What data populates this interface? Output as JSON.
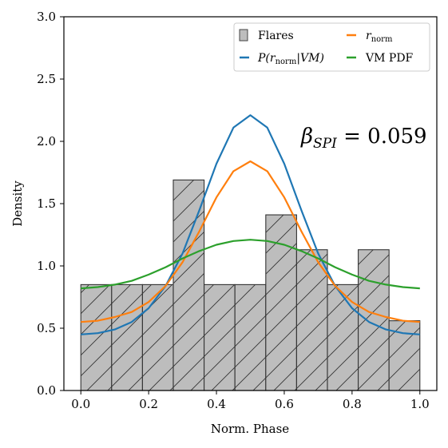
{
  "chart_data": {
    "type": "bar",
    "xlabel": "Norm. Phase",
    "ylabel": "Density",
    "xlim": [
      -0.05,
      1.05
    ],
    "ylim": [
      0.0,
      3.0
    ],
    "xticks": [
      "0.0",
      "0.2",
      "0.4",
      "0.6",
      "0.8",
      "1.0"
    ],
    "yticks": [
      "0.0",
      "0.5",
      "1.0",
      "1.5",
      "2.0",
      "2.5",
      "3.0"
    ],
    "histogram": {
      "name": "Flares",
      "color": "#bdbdbd",
      "bin_edges": [
        0.0,
        0.0909,
        0.1818,
        0.2727,
        0.3636,
        0.4545,
        0.5455,
        0.6364,
        0.7273,
        0.8182,
        0.9091,
        1.0
      ],
      "values": [
        0.85,
        0.85,
        0.85,
        1.69,
        0.85,
        0.85,
        1.41,
        1.13,
        0.85,
        1.13,
        0.56
      ]
    },
    "series": [
      {
        "name": "P(r_norm|VM)",
        "label_parts": [
          "P(r",
          "norm",
          "|VM)"
        ],
        "color": "#1f77b4",
        "x": [
          0.0,
          0.05,
          0.1,
          0.15,
          0.2,
          0.25,
          0.3,
          0.35,
          0.4,
          0.45,
          0.5,
          0.55,
          0.6,
          0.65,
          0.7,
          0.75,
          0.8,
          0.85,
          0.9,
          0.95,
          1.0
        ],
        "y": [
          0.45,
          0.46,
          0.49,
          0.55,
          0.66,
          0.84,
          1.1,
          1.45,
          1.82,
          2.11,
          2.21,
          2.11,
          1.82,
          1.45,
          1.1,
          0.84,
          0.66,
          0.55,
          0.49,
          0.46,
          0.45
        ]
      },
      {
        "name": "r_norm",
        "label_parts": [
          "r",
          "norm"
        ],
        "color": "#ff7f0e",
        "x": [
          0.0,
          0.05,
          0.1,
          0.15,
          0.2,
          0.25,
          0.3,
          0.35,
          0.4,
          0.45,
          0.5,
          0.55,
          0.6,
          0.65,
          0.7,
          0.75,
          0.8,
          0.85,
          0.9,
          0.95,
          1.0
        ],
        "y": [
          0.55,
          0.56,
          0.59,
          0.63,
          0.71,
          0.84,
          1.03,
          1.28,
          1.55,
          1.76,
          1.84,
          1.76,
          1.55,
          1.28,
          1.03,
          0.84,
          0.71,
          0.63,
          0.59,
          0.56,
          0.55
        ]
      },
      {
        "name": "VM PDF",
        "color": "#2ca02c",
        "x": [
          0.0,
          0.05,
          0.1,
          0.15,
          0.2,
          0.25,
          0.3,
          0.35,
          0.4,
          0.45,
          0.5,
          0.55,
          0.6,
          0.65,
          0.7,
          0.75,
          0.8,
          0.85,
          0.9,
          0.95,
          1.0
        ],
        "y": [
          0.82,
          0.83,
          0.85,
          0.88,
          0.93,
          0.99,
          1.06,
          1.12,
          1.17,
          1.2,
          1.21,
          1.2,
          1.17,
          1.12,
          1.06,
          0.99,
          0.93,
          0.88,
          0.85,
          0.83,
          0.82
        ]
      }
    ],
    "legend": {
      "placement": "top-right",
      "columns": 2
    },
    "annotation": {
      "symbol": "β",
      "subscript": "SPI",
      "rest": " = 0.059",
      "x": 0.65,
      "y": 2.0
    },
    "grid": false
  }
}
